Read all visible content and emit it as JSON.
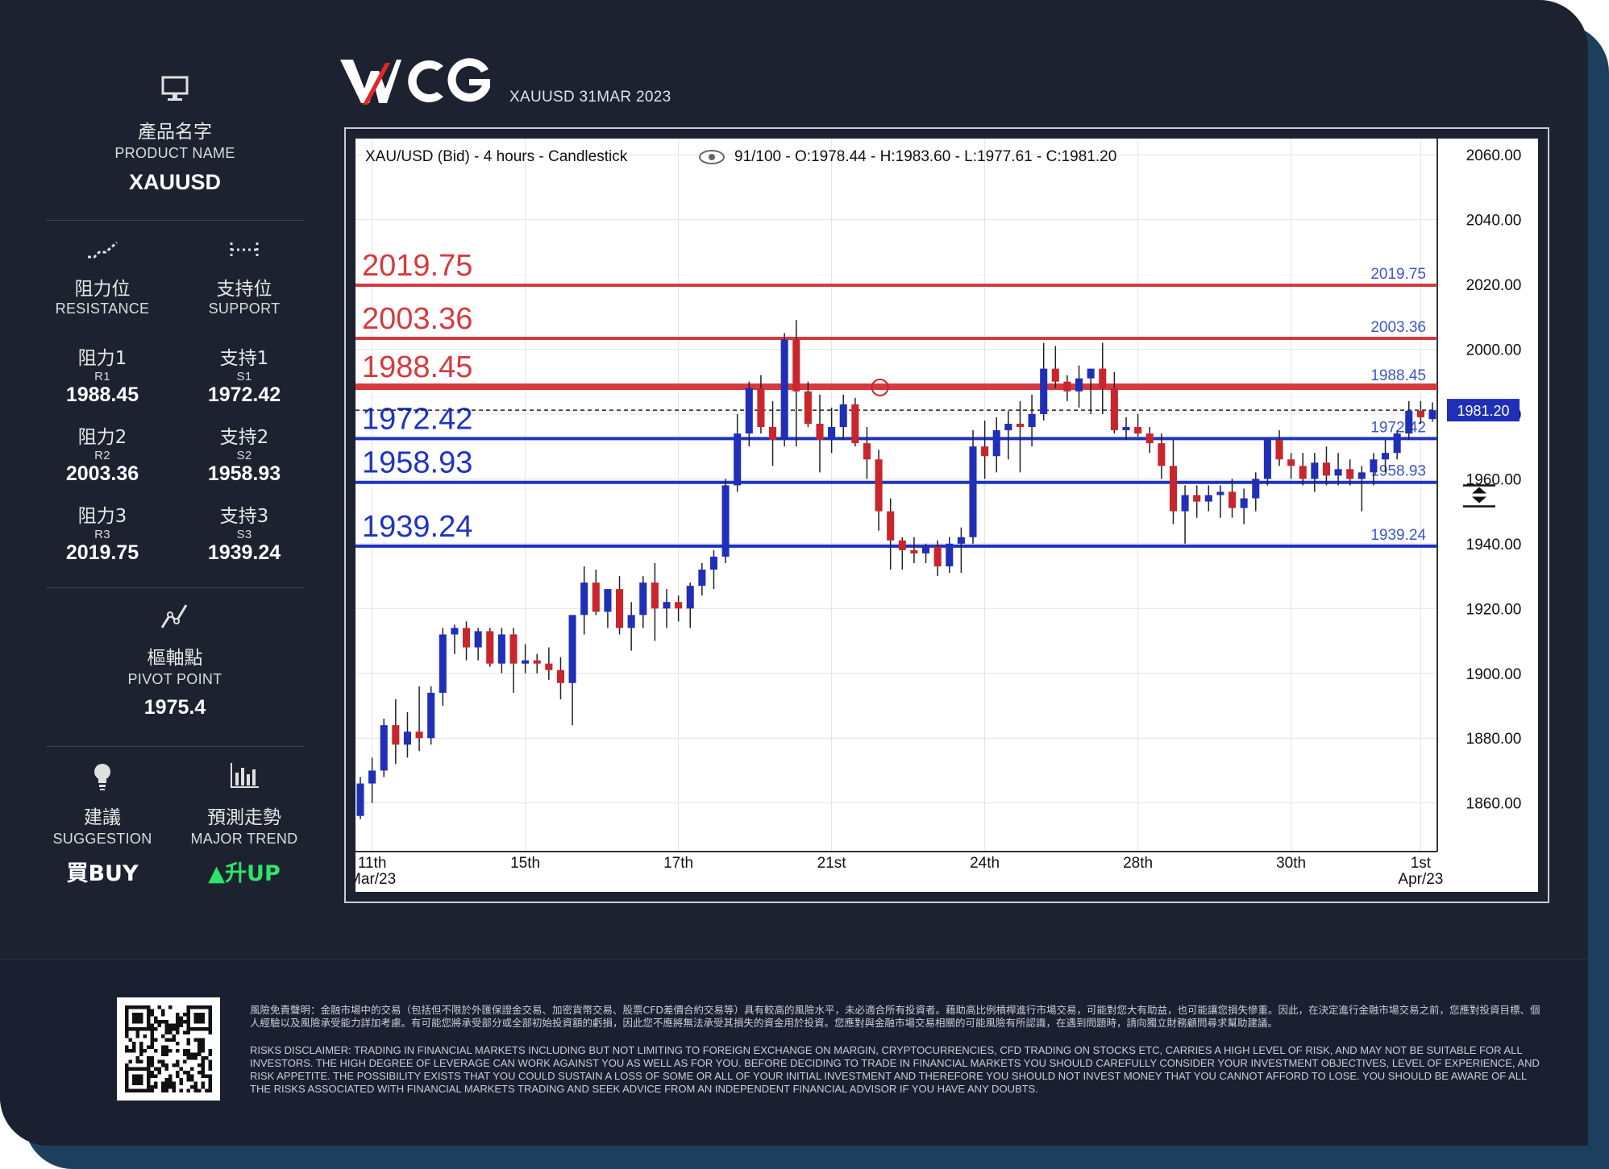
{
  "header": {
    "logo_text": "WCG",
    "subtitle": "XAUUSD 31MAR 2023"
  },
  "sidebar": {
    "product": {
      "icon": "monitor-icon",
      "label_cn": "產品名字",
      "label_en": "PRODUCT NAME",
      "value": "XAUUSD"
    },
    "resistance": {
      "icon": "resistance-icon",
      "label_cn": "阻力位",
      "label_en": "RESISTANCE",
      "levels": [
        {
          "cn": "阻力1",
          "code": "R1",
          "value": "1988.45"
        },
        {
          "cn": "阻力2",
          "code": "R2",
          "value": "2003.36"
        },
        {
          "cn": "阻力3",
          "code": "R3",
          "value": "2019.75"
        }
      ]
    },
    "support": {
      "icon": "support-icon",
      "label_cn": "支持位",
      "label_en": "SUPPORT",
      "levels": [
        {
          "cn": "支持1",
          "code": "S1",
          "value": "1972.42"
        },
        {
          "cn": "支持2",
          "code": "S2",
          "value": "1958.93"
        },
        {
          "cn": "支持3",
          "code": "S3",
          "value": "1939.24"
        }
      ]
    },
    "pivot": {
      "icon": "pivot-icon",
      "label_cn": "樞軸點",
      "label_en": "PIVOT POINT",
      "value": "1975.4"
    },
    "suggestion": {
      "icon": "lightbulb-icon",
      "label_cn": "建議",
      "label_en": "SUGGESTION",
      "value": "買BUY"
    },
    "trend": {
      "icon": "bar-chart-icon",
      "label_cn": "預測走勢",
      "label_en": "MAJOR TREND",
      "value": "升UP",
      "arrow": "▲",
      "color": "#2ee36a"
    }
  },
  "chart_data": {
    "type": "candlestick",
    "title": "XAU/USD (Bid) - 4 hours - Candlestick",
    "info": "91/100 - O:1978.44 - H:1983.60 - L:1977.61 - C:1981.20",
    "ylim": [
      1845,
      2065
    ],
    "yticks": [
      "2060.00",
      "2040.00",
      "2020.00",
      "2000.00",
      "1980.00",
      "1960.00",
      "1940.00",
      "1920.00",
      "1900.00",
      "1880.00",
      "1860.00"
    ],
    "x_count": 92,
    "xticks": [
      {
        "i": 1,
        "label": "11th",
        "label2": "Mar/23"
      },
      {
        "i": 14,
        "label": "15th"
      },
      {
        "i": 27,
        "label": "17th"
      },
      {
        "i": 40,
        "label": "21st"
      },
      {
        "i": 53,
        "label": "24th"
      },
      {
        "i": 66,
        "label": "28th"
      },
      {
        "i": 79,
        "label": "30th"
      },
      {
        "i": 90,
        "label": "1st",
        "label2": "Apr/23"
      }
    ],
    "current_price": "1981.20",
    "levels": [
      {
        "value": 2019.75,
        "label": "2019.75",
        "kind": "resistance"
      },
      {
        "value": 2003.36,
        "label": "2003.36",
        "kind": "resistance"
      },
      {
        "value": 1988.45,
        "label": "1988.45",
        "kind": "resistance"
      },
      {
        "value": 1972.42,
        "label": "1972.42",
        "kind": "support"
      },
      {
        "value": 1958.93,
        "label": "1958.93",
        "kind": "support"
      },
      {
        "value": 1939.24,
        "label": "1939.24",
        "kind": "support"
      }
    ],
    "colors": {
      "up": "#1f2fb8",
      "down": "#c8262c",
      "resistance": "#d63a3f",
      "support": "#1f33c4"
    },
    "candles": [
      [
        1856,
        1868,
        1855,
        1866
      ],
      [
        1866,
        1874,
        1860,
        1870
      ],
      [
        1870,
        1886,
        1868,
        1884
      ],
      [
        1884,
        1892,
        1872,
        1878
      ],
      [
        1878,
        1888,
        1874,
        1882
      ],
      [
        1882,
        1896,
        1876,
        1880
      ],
      [
        1880,
        1896,
        1878,
        1894
      ],
      [
        1894,
        1914,
        1890,
        1912
      ],
      [
        1912,
        1915,
        1906,
        1914
      ],
      [
        1914,
        1916,
        1904,
        1908
      ],
      [
        1908,
        1914,
        1904,
        1913
      ],
      [
        1913,
        1914,
        1902,
        1903
      ],
      [
        1903,
        1914,
        1900,
        1912
      ],
      [
        1912,
        1914,
        1894,
        1903
      ],
      [
        1903,
        1909,
        1900,
        1904
      ],
      [
        1904,
        1906,
        1900,
        1903
      ],
      [
        1903,
        1908,
        1898,
        1901
      ],
      [
        1901,
        1905,
        1892,
        1897
      ],
      [
        1897,
        1918,
        1884,
        1918
      ],
      [
        1918,
        1933,
        1912,
        1928
      ],
      [
        1928,
        1932,
        1918,
        1919
      ],
      [
        1919,
        1926,
        1914,
        1926
      ],
      [
        1926,
        1930,
        1912,
        1914
      ],
      [
        1914,
        1922,
        1907,
        1918
      ],
      [
        1918,
        1930,
        1914,
        1928
      ],
      [
        1928,
        1934,
        1910,
        1920
      ],
      [
        1920,
        1926,
        1914,
        1922
      ],
      [
        1922,
        1924,
        1916,
        1920
      ],
      [
        1920,
        1928,
        1914,
        1927
      ],
      [
        1927,
        1934,
        1924,
        1932
      ],
      [
        1932,
        1938,
        1926,
        1936
      ],
      [
        1936,
        1960,
        1934,
        1958
      ],
      [
        1958,
        1980,
        1956,
        1974
      ],
      [
        1974,
        1990,
        1970,
        1988
      ],
      [
        1988,
        1992,
        1974,
        1976
      ],
      [
        1976,
        1984,
        1964,
        1972
      ],
      [
        1972,
        2005,
        1970,
        2003
      ],
      [
        2003,
        2009,
        1970,
        1987
      ],
      [
        1987,
        1990,
        1976,
        1977
      ],
      [
        1977,
        1986,
        1962,
        1972
      ],
      [
        1972,
        1982,
        1968,
        1976
      ],
      [
        1976,
        1986,
        1972,
        1983
      ],
      [
        1983,
        1985,
        1970,
        1971
      ],
      [
        1971,
        1976,
        1960,
        1966
      ],
      [
        1966,
        1969,
        1944,
        1950
      ],
      [
        1950,
        1954,
        1932,
        1941
      ],
      [
        1941,
        1942,
        1932,
        1938
      ],
      [
        1938,
        1942,
        1934,
        1937
      ],
      [
        1937,
        1940,
        1934,
        1939
      ],
      [
        1939,
        1941,
        1930,
        1933
      ],
      [
        1933,
        1942,
        1931,
        1940
      ],
      [
        1940,
        1945,
        1931,
        1942
      ],
      [
        1942,
        1975,
        1940,
        1970
      ],
      [
        1970,
        1978,
        1960,
        1967
      ],
      [
        1967,
        1979,
        1962,
        1975
      ],
      [
        1975,
        1981,
        1966,
        1977
      ],
      [
        1977,
        1984,
        1962,
        1976
      ],
      [
        1976,
        1986,
        1970,
        1980
      ],
      [
        1980,
        2002,
        1978,
        1994
      ],
      [
        1994,
        2001,
        1988,
        1990
      ],
      [
        1990,
        1992,
        1984,
        1987
      ],
      [
        1987,
        1995,
        1982,
        1991
      ],
      [
        1991,
        1994,
        1980,
        1994
      ],
      [
        1994,
        2002,
        1980,
        1988
      ],
      [
        1988,
        1993,
        1974,
        1975
      ],
      [
        1975,
        1979,
        1972,
        1976
      ],
      [
        1976,
        1980,
        1973,
        1974
      ],
      [
        1974,
        1976,
        1968,
        1971
      ],
      [
        1971,
        1974,
        1960,
        1964
      ],
      [
        1964,
        1972,
        1946,
        1950
      ],
      [
        1950,
        1958,
        1940,
        1955
      ],
      [
        1955,
        1958,
        1948,
        1953
      ],
      [
        1953,
        1958,
        1950,
        1955
      ],
      [
        1955,
        1958,
        1948,
        1956
      ],
      [
        1956,
        1960,
        1948,
        1951
      ],
      [
        1951,
        1957,
        1946,
        1954
      ],
      [
        1954,
        1962,
        1950,
        1960
      ],
      [
        1960,
        1972,
        1958,
        1972
      ],
      [
        1972,
        1975,
        1964,
        1966
      ],
      [
        1966,
        1968,
        1960,
        1964
      ],
      [
        1964,
        1968,
        1958,
        1960
      ],
      [
        1960,
        1968,
        1956,
        1965
      ],
      [
        1965,
        1970,
        1958,
        1961
      ],
      [
        1961,
        1968,
        1958,
        1963
      ],
      [
        1963,
        1966,
        1958,
        1960
      ],
      [
        1960,
        1964,
        1950,
        1962
      ],
      [
        1962,
        1968,
        1958,
        1966
      ],
      [
        1966,
        1972,
        1962,
        1968
      ],
      [
        1968,
        1975,
        1966,
        1974
      ],
      [
        1974,
        1984,
        1972,
        1981
      ],
      [
        1981,
        1984,
        1977,
        1979
      ],
      [
        1978.44,
        1983.6,
        1977.61,
        1981.2
      ]
    ]
  },
  "footer": {
    "qr_icon": "qr-code-icon",
    "disclaimer_cn": "風險免責聲明：金融市場中的交易（包括但不限於外匯保證金交易、加密貨幣交易、股票CFD差價合約交易等）具有較高的風險水平，未必適合所有投資者。藉助高比例槓桿進行市場交易，可能對您大有助益，也可能讓您損失慘重。因此，在決定進行金融市場交易之前，您應對投資目標、個人經驗以及風險承受能力詳加考慮。有可能您將承受部分或全部初始投資額的虧損，因此您不應將無法承受其損失的資金用於投資。您應對與金融市場交易相關的可能風險有所認識，在遇到問題時，請向獨立財務顧問尋求幫助建議。",
    "disclaimer_en": "RISKS DISCLAIMER: TRADING IN FINANCIAL MARKETS INCLUDING BUT NOT LIMITING TO FOREIGN EXCHANGE ON MARGIN, CRYPTOCURRENCIES, CFD TRADING ON STOCKS ETC, CARRIES A HIGH LEVEL OF RISK, AND MAY NOT BE SUITABLE FOR ALL INVESTORS. THE HIGH DEGREE OF LEVERAGE CAN WORK AGAINST YOU AS WELL AS FOR YOU. BEFORE DECIDING TO TRADE IN FINANCIAL MARKETS YOU SHOULD CAREFULLY CONSIDER YOUR INVESTMENT OBJECTIVES, LEVEL OF EXPERIENCE, AND RISK APPETITE. THE POSSIBILITY EXISTS THAT YOU COULD SUSTAIN A LOSS OF SOME OR ALL OF YOUR INITIAL INVESTMENT AND THEREFORE YOU SHOULD NOT INVEST MONEY THAT YOU CANNOT AFFORD TO LOSE. YOU SHOULD BE AWARE OF ALL THE RISKS ASSOCIATED WITH FINANCIAL MARKETS TRADING AND SEEK ADVICE FROM AN INDEPENDENT FINANCIAL ADVISOR IF YOU HAVE ANY DOUBTS."
  }
}
